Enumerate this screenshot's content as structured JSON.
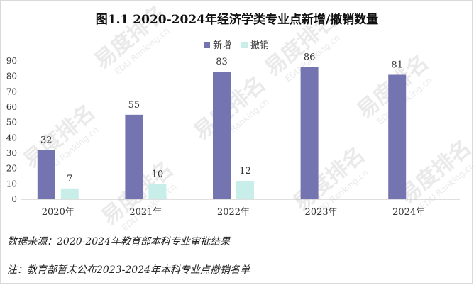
{
  "chart_data": {
    "type": "bar",
    "title": "图1.1  2020-2024年经济学类专业点新增/撤销数量",
    "categories": [
      "2020年",
      "2021年",
      "2022年",
      "2023年",
      "2024年"
    ],
    "series": [
      {
        "name": "新增",
        "values": [
          32,
          55,
          83,
          86,
          81
        ],
        "color": "#7475b0"
      },
      {
        "name": "撤销",
        "values": [
          7,
          10,
          12,
          null,
          null
        ],
        "color": "#c8eeea"
      }
    ],
    "ylim": [
      0,
      90
    ],
    "yticks": [
      0,
      10,
      20,
      30,
      40,
      50,
      60,
      70,
      80,
      90
    ],
    "grid": false,
    "legend": "top-center"
  },
  "notes": {
    "source": "数据来源：2020-2024年教育部本科专业审批结果",
    "note": "注：教育部暂未公布2023-2024年本科专业点撤销名单"
  },
  "watermark": {
    "brand": "易度排名",
    "sub": "EDU Ranking.cn",
    "color": "#e3e3e3"
  }
}
